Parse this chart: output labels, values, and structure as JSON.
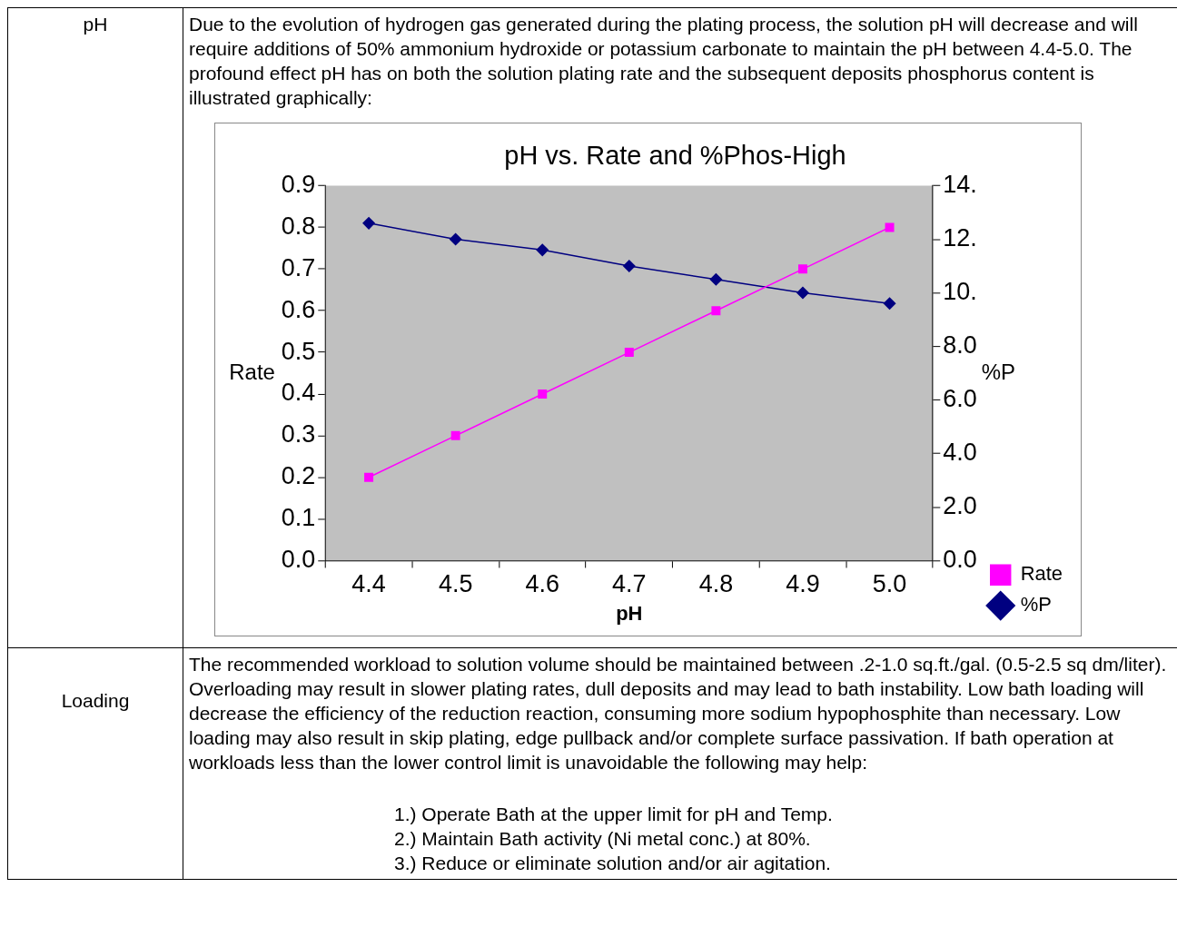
{
  "chart_data": {
    "type": "line",
    "title": "pH vs. Rate and %Phos-High",
    "xlabel": "pH",
    "ylabel": "Rate",
    "y2label": "%P",
    "categories": [
      "4.4",
      "4.5",
      "4.6",
      "4.7",
      "4.8",
      "4.9",
      "5.0"
    ],
    "series": [
      {
        "name": "Rate",
        "color": "#ff00ff",
        "marker": "square",
        "values": [
          0.2,
          0.3,
          0.4,
          0.5,
          0.6,
          0.7,
          0.8
        ]
      },
      {
        "name": "%P",
        "color": "#000080",
        "marker": "diamond",
        "axis": "y2",
        "values": [
          12.6,
          12.0,
          11.6,
          11.0,
          10.5,
          10.0,
          9.6
        ]
      }
    ],
    "ylim": [
      0,
      0.9
    ],
    "yticks": [
      {
        "value": 0,
        "label": "0.0"
      },
      {
        "value": 0.1,
        "label": "0.1"
      },
      {
        "value": 0.2,
        "label": "0.2"
      },
      {
        "value": 0.3,
        "label": "0.3"
      },
      {
        "value": 0.4,
        "label": "0.4"
      },
      {
        "value": 0.5,
        "label": "0.5"
      },
      {
        "value": 0.6,
        "label": "0.6"
      },
      {
        "value": 0.7,
        "label": "0.7"
      },
      {
        "value": 0.8,
        "label": "0.8"
      },
      {
        "value": 0.9,
        "label": "0.9"
      }
    ],
    "y2lim": [
      0,
      14
    ],
    "y2ticks": [
      {
        "value": 0,
        "label": "0.0"
      },
      {
        "value": 2,
        "label": "2.0"
      },
      {
        "value": 4,
        "label": "4.0"
      },
      {
        "value": 6,
        "label": "6.0"
      },
      {
        "value": 8,
        "label": "8.0"
      },
      {
        "value": 10,
        "label": "10."
      },
      {
        "value": 12,
        "label": "12."
      },
      {
        "value": 14,
        "label": "14."
      }
    ],
    "grid": false,
    "legend": "bottom right",
    "line_style": "solid",
    "annotations": [
      "pH",
      "Due to the evolution of hydrogen gas generated during the plating process, the solution pH will decrease and will require additions of 50% ammonium hydroxide or potassium carbonate to maintain the pH between 4.4-5.0. The profound effect pH has on both the solution plating rate and the subsequent deposits phosphorus content is illustrated graphically:",
      "Loading",
      "The recommended workload to solution volume should be maintained between .2-1.0 sq.ft./gal. (0.5-2.5 sq dm/liter). Overloading may result in slower plating rates, dull deposits and may lead to bath instability.  Low bath loading will decrease the efficiency of the reduction reaction, consuming more sodium hypophosphite than necessary.  Low loading may also result in skip plating, edge pullback and/or complete surface passivation.  If bath operation at workloads less than the lower control limit is unavoidable the following may help:",
      "1.) Operate Bath at the upper limit for pH and Temp.",
      "2.) Maintain Bath activity (Ni metal conc.) at 80%.",
      "3.) Reduce or eliminate solution and/or air agitation."
    ]
  }
}
